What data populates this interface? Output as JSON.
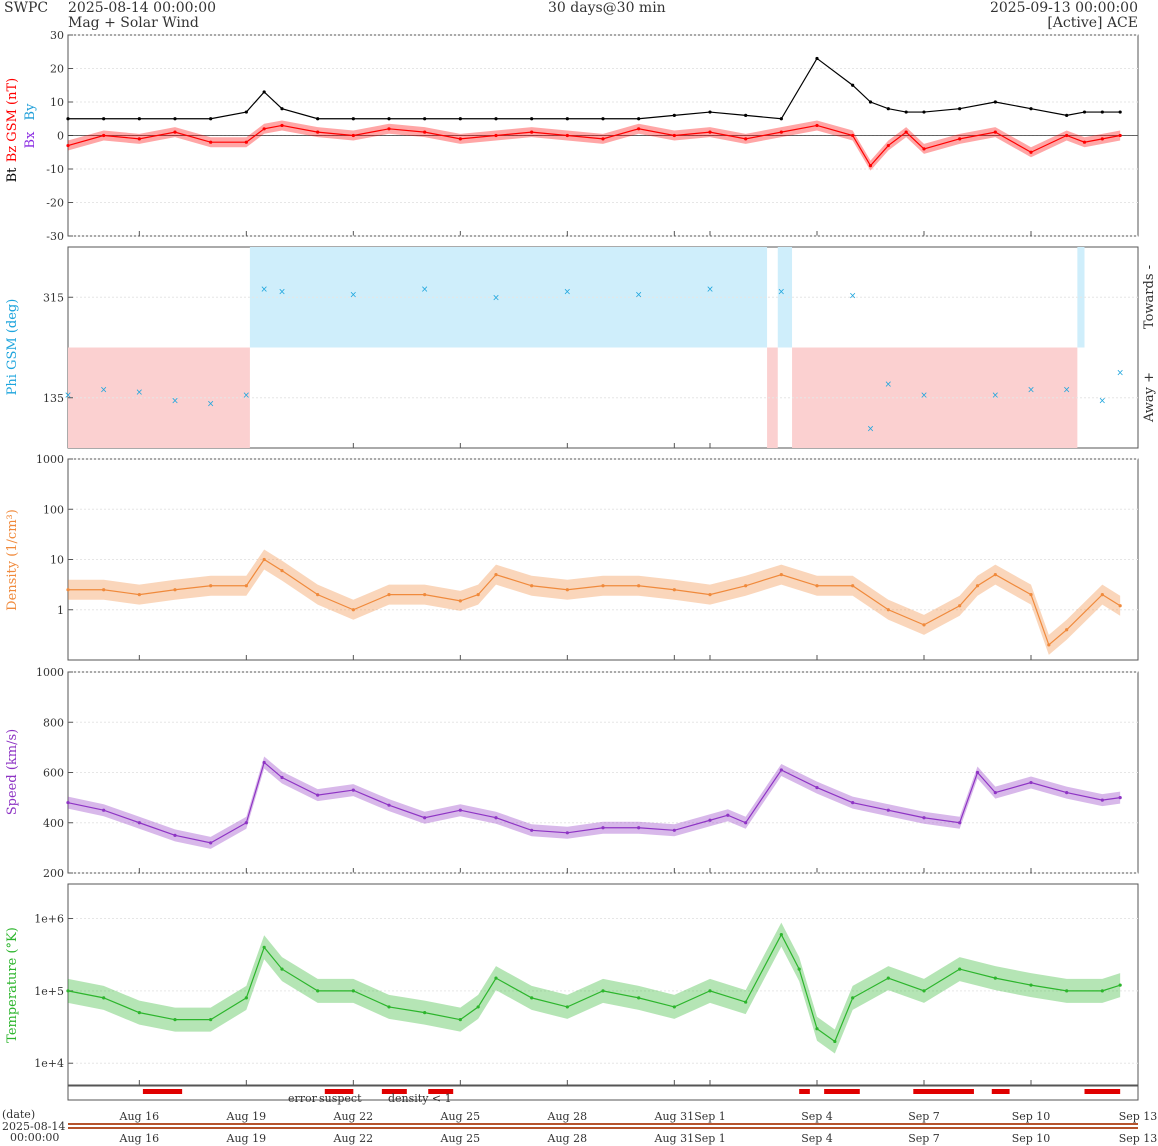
{
  "header": {
    "source": "SWPC",
    "start": "2025-08-14 00:00:00",
    "subtitle": "Mag + Solar Wind",
    "span": "30 days@30 min",
    "end": "2025-09-13 00:00:00",
    "spacecraft": "[Active] ACE"
  },
  "colors": {
    "bt": "#000000",
    "bz": "#ff0000",
    "bx": "#8a2be2",
    "by": "#1e9ed8",
    "phi": "#1ea5dd",
    "towards_band": "#cfeefb",
    "away_band": "#fbd0d0",
    "density": "#f08a3c",
    "speed": "#8e34c4",
    "temperature": "#2cb52c",
    "error": "#e00000",
    "suspect": "#ffb000",
    "density_lt1": "#ff5000"
  },
  "chart_data": [
    {
      "type": "line",
      "panel": "mag",
      "ylabel_bt": "Bt",
      "ylabel_bz": "Bz GSM (nT)",
      "legend_bx": "Bx",
      "legend_by": "By",
      "ylim": [
        -30,
        30
      ],
      "yticks": [
        "30",
        "20",
        "10",
        "0",
        "-10",
        "-20",
        "-30"
      ],
      "x_days": [
        0,
        1,
        2,
        3,
        4,
        5,
        5.5,
        6,
        7,
        8,
        9,
        10,
        11,
        12,
        13,
        14,
        15,
        16,
        17,
        18,
        19,
        20,
        21,
        22,
        22.5,
        23,
        23.5,
        24,
        25,
        26,
        27,
        28,
        28.5,
        29,
        29.5
      ],
      "series": [
        {
          "name": "Bt",
          "values": [
            5,
            5,
            5,
            5,
            5,
            7,
            13,
            8,
            5,
            5,
            5,
            5,
            5,
            5,
            5,
            5,
            5,
            5,
            6,
            7,
            6,
            5,
            23,
            15,
            10,
            8,
            7,
            7,
            8,
            10,
            8,
            6,
            7,
            7,
            7
          ]
        },
        {
          "name": "Bz",
          "values": [
            -3,
            0,
            -1,
            1,
            -2,
            -2,
            2,
            3,
            1,
            0,
            2,
            1,
            -1,
            0,
            1,
            0,
            -1,
            2,
            0,
            1,
            -1,
            1,
            3,
            0,
            -9,
            -3,
            1,
            -4,
            -1,
            1,
            -5,
            0,
            -2,
            -1,
            0
          ]
        }
      ]
    },
    {
      "type": "scatter",
      "panel": "phi",
      "ylabel": "Phi GSM (deg)",
      "yticks": [
        "315",
        "135"
      ],
      "right_top": "Towards -",
      "right_bottom": "Away +",
      "ylim": [
        45,
        405
      ],
      "x_days": [
        0,
        1,
        2,
        3,
        4,
        5,
        5.5,
        6,
        8,
        10,
        12,
        14,
        16,
        18,
        20,
        22,
        22.5,
        23,
        24,
        26,
        27,
        28,
        29,
        29.5
      ],
      "values": [
        140,
        150,
        145,
        130,
        125,
        140,
        330,
        325,
        320,
        330,
        315,
        325,
        320,
        330,
        325,
        318,
        80,
        160,
        140,
        140,
        150,
        150,
        130,
        180
      ]
    },
    {
      "type": "line",
      "panel": "density",
      "ylabel": "Density (1/cm³)",
      "scale": "log",
      "yticks": [
        "1000",
        "100",
        "10",
        "1"
      ],
      "ylim": [
        0.1,
        1000
      ],
      "x_days": [
        0,
        1,
        2,
        3,
        4,
        5,
        5.5,
        6,
        7,
        8,
        9,
        10,
        11,
        11.5,
        12,
        13,
        14,
        15,
        16,
        17,
        18,
        19,
        20,
        21,
        22,
        23,
        24,
        25,
        25.5,
        26,
        27,
        27.5,
        28,
        29,
        29.5
      ],
      "values": [
        2.5,
        2.5,
        2,
        2.5,
        3,
        3,
        10,
        6,
        2,
        1,
        2,
        2,
        1.5,
        2,
        5,
        3,
        2.5,
        3,
        3,
        2.5,
        2,
        3,
        5,
        3,
        3,
        1,
        0.5,
        1.2,
        3,
        5,
        2,
        0.2,
        0.4,
        2,
        1.2
      ]
    },
    {
      "type": "line",
      "panel": "speed",
      "ylabel": "Speed (km/s)",
      "yticks": [
        "1000",
        "800",
        "600",
        "400",
        "200"
      ],
      "ylim": [
        200,
        1000
      ],
      "x_days": [
        0,
        1,
        2,
        3,
        4,
        5,
        5.5,
        6,
        7,
        8,
        9,
        10,
        11,
        12,
        13,
        14,
        15,
        16,
        17,
        18,
        18.5,
        19,
        20,
        21,
        22,
        23,
        24,
        25,
        25.5,
        26,
        27,
        28,
        29,
        29.5
      ],
      "values": [
        480,
        450,
        400,
        350,
        320,
        400,
        640,
        580,
        510,
        530,
        470,
        420,
        450,
        420,
        370,
        360,
        380,
        380,
        370,
        410,
        430,
        400,
        610,
        540,
        480,
        450,
        420,
        400,
        600,
        520,
        560,
        520,
        490,
        500
      ]
    },
    {
      "type": "line",
      "panel": "temperature",
      "ylabel": "Temperature (°K)",
      "scale": "log",
      "yticks": [
        "1e+6",
        "1e+5",
        "1e+4"
      ],
      "ylim": [
        5000,
        3000000
      ],
      "x_days": [
        0,
        1,
        2,
        3,
        4,
        5,
        5.5,
        6,
        7,
        8,
        9,
        10,
        11,
        11.5,
        12,
        13,
        14,
        15,
        16,
        17,
        18,
        19,
        20,
        20.5,
        21,
        21.5,
        22,
        23,
        24,
        25,
        26,
        27,
        28,
        29,
        29.5
      ],
      "values": [
        100000,
        80000,
        50000,
        40000,
        40000,
        80000,
        400000,
        200000,
        100000,
        100000,
        60000,
        50000,
        40000,
        60000,
        150000,
        80000,
        60000,
        100000,
        80000,
        60000,
        100000,
        70000,
        600000,
        200000,
        30000,
        20000,
        80000,
        150000,
        100000,
        200000,
        150000,
        120000,
        100000,
        100000,
        120000
      ]
    }
  ],
  "status": {
    "labels": {
      "error": "error",
      "suspect": "suspect",
      "density": "density < 1"
    },
    "segments": [
      [
        2.1,
        3.2
      ],
      [
        7.2,
        8.0
      ],
      [
        8.8,
        9.5
      ],
      [
        10.1,
        10.8
      ],
      [
        20.5,
        20.8
      ],
      [
        21.2,
        22.2
      ],
      [
        23.7,
        25.4
      ],
      [
        25.9,
        26.4
      ],
      [
        28.5,
        29.5
      ]
    ]
  },
  "timeline": {
    "date_label": "(date)",
    "start_date": "2025-08-14",
    "start_time": "00:00:00",
    "ticks": [
      "Aug 16",
      "Aug 19",
      "Aug 22",
      "Aug 25",
      "Aug 28",
      "Aug 31",
      "Sep 1",
      "Sep 4",
      "Sep 7",
      "Sep 10",
      "Sep 13"
    ],
    "tick_days": [
      2,
      5,
      8,
      11,
      14,
      17,
      18,
      21,
      24,
      27,
      30
    ]
  }
}
